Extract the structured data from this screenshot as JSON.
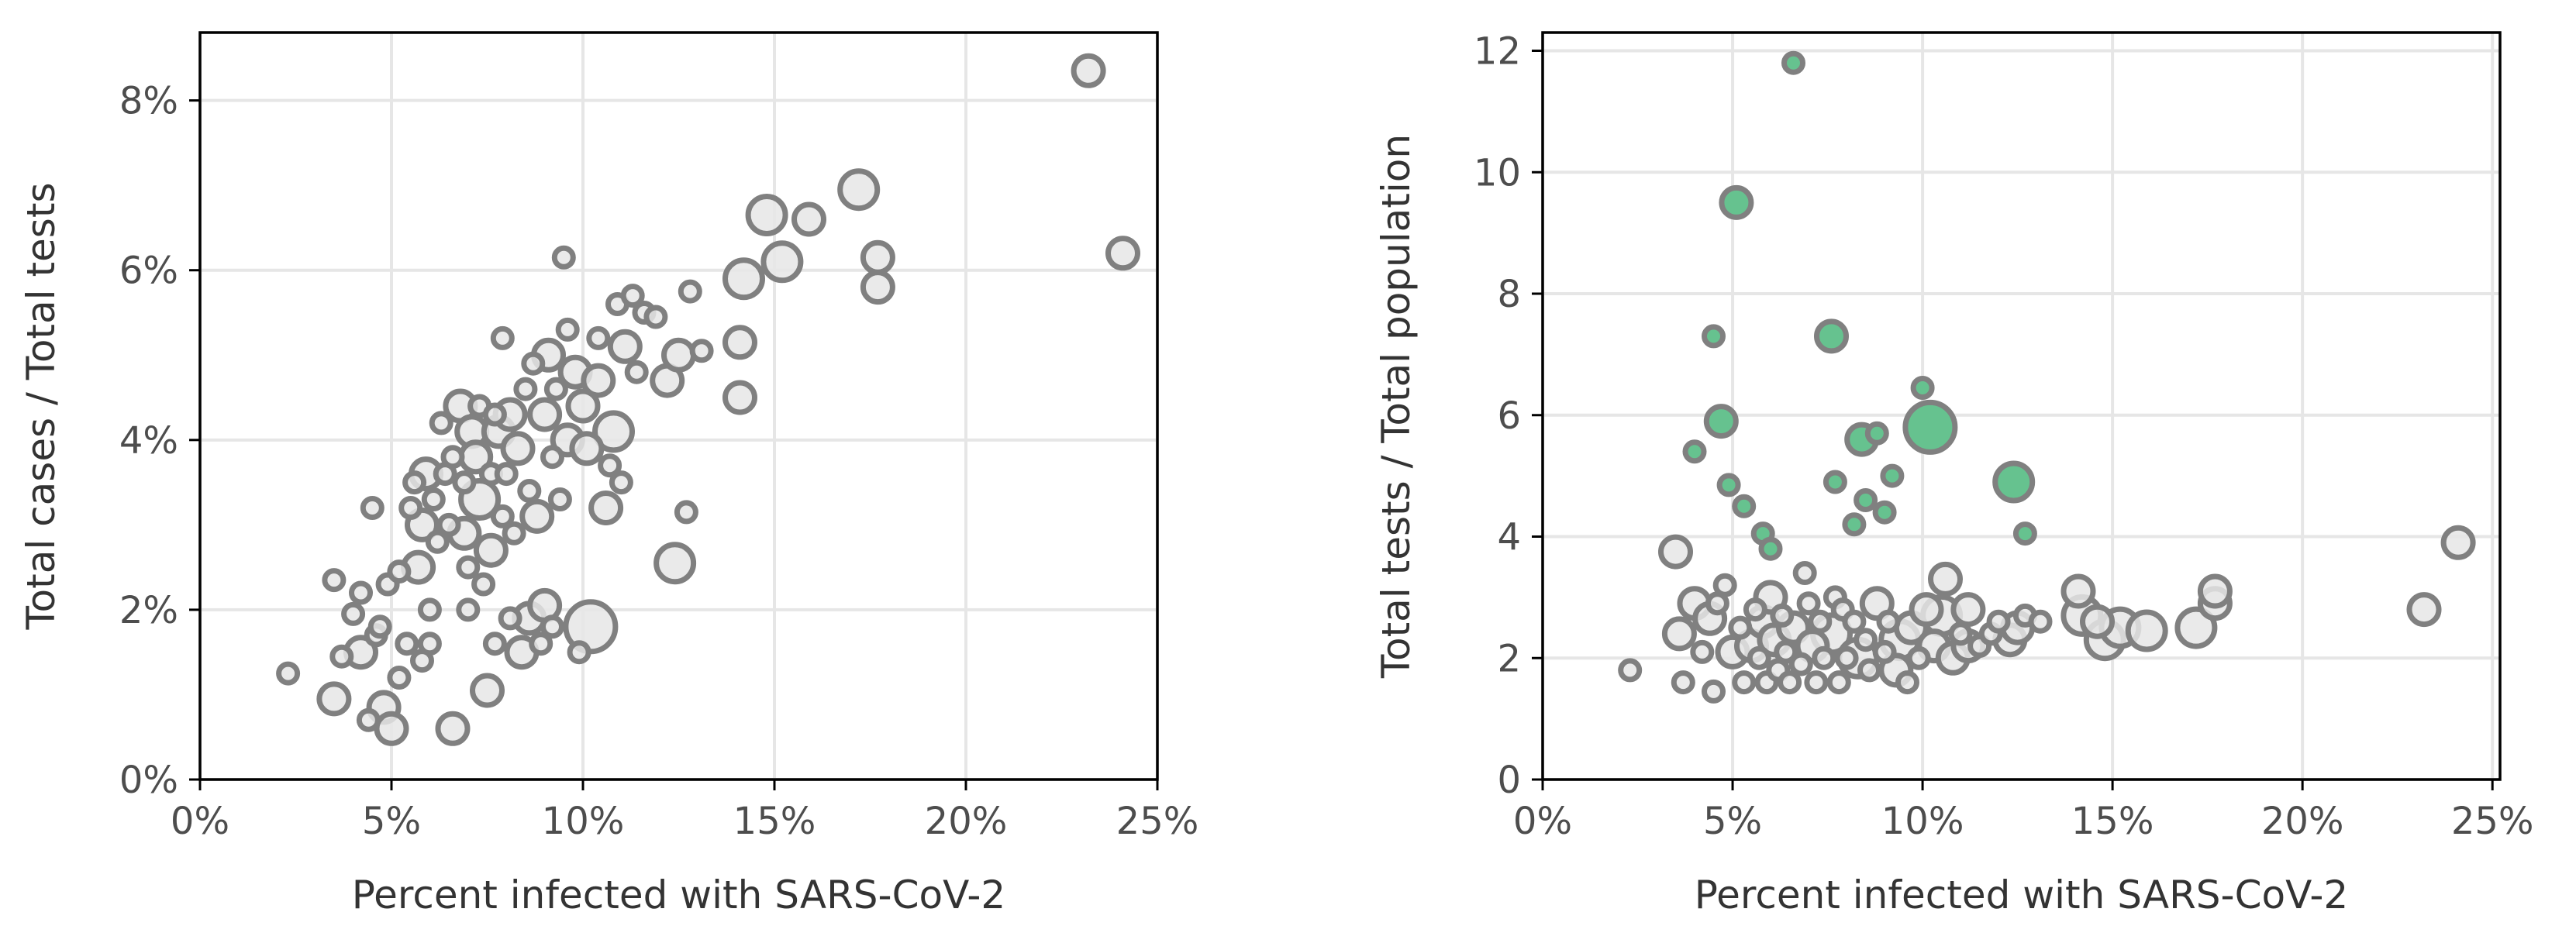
{
  "colors": {
    "bubble_fill": "#e6e6e6",
    "bubble_edge": "#808080",
    "highlight_fill": "#66c28f",
    "grid": "#e6e6e6"
  },
  "chart_data": [
    {
      "type": "scatter",
      "title": "",
      "xlabel": "Percent infected with SARS-CoV-2",
      "ylabel": "Total cases / Total tests",
      "xlim": [
        0,
        25
      ],
      "ylim": [
        0,
        8.8
      ],
      "x_ticks": [
        0,
        5,
        10,
        15,
        20,
        25
      ],
      "x_tick_labels": [
        "0%",
        "5%",
        "10%",
        "15%",
        "20%",
        "25%"
      ],
      "y_ticks": [
        0,
        2,
        4,
        6,
        8
      ],
      "y_tick_labels": [
        "0%",
        "2%",
        "4%",
        "6%",
        "8%"
      ],
      "grid": true,
      "series": [
        {
          "points": [
            [
              2.3,
              1.25,
              1
            ],
            [
              3.5,
              2.35,
              1
            ],
            [
              3.7,
              1.45,
              1
            ],
            [
              3.5,
              0.95,
              2
            ],
            [
              4.0,
              1.95,
              1
            ],
            [
              4.2,
              1.5,
              2
            ],
            [
              4.2,
              2.2,
              1
            ],
            [
              4.4,
              0.7,
              1
            ],
            [
              4.5,
              3.2,
              1
            ],
            [
              4.6,
              1.7,
              1
            ],
            [
              4.7,
              1.8,
              1
            ],
            [
              4.8,
              0.85,
              2
            ],
            [
              4.9,
              2.3,
              1
            ],
            [
              5.0,
              0.6,
              2
            ],
            [
              5.2,
              1.2,
              1
            ],
            [
              5.2,
              2.45,
              1
            ],
            [
              5.4,
              1.6,
              1
            ],
            [
              5.5,
              3.2,
              1
            ],
            [
              5.6,
              3.5,
              1
            ],
            [
              5.7,
              2.5,
              2
            ],
            [
              5.8,
              1.4,
              1
            ],
            [
              5.8,
              3.0,
              2
            ],
            [
              5.9,
              3.6,
              2
            ],
            [
              6.0,
              2.0,
              1
            ],
            [
              6.0,
              1.6,
              1
            ],
            [
              6.1,
              3.3,
              1
            ],
            [
              6.2,
              2.8,
              1
            ],
            [
              6.3,
              4.2,
              1
            ],
            [
              6.4,
              3.6,
              1
            ],
            [
              6.5,
              3.0,
              1
            ],
            [
              6.6,
              0.6,
              2
            ],
            [
              6.6,
              3.8,
              1
            ],
            [
              6.8,
              4.4,
              2
            ],
            [
              6.9,
              3.5,
              1
            ],
            [
              6.9,
              2.9,
              2
            ],
            [
              7.0,
              2.5,
              1
            ],
            [
              7.0,
              2.0,
              1
            ],
            [
              7.1,
              4.1,
              2
            ],
            [
              7.2,
              3.8,
              2
            ],
            [
              7.3,
              3.3,
              3
            ],
            [
              7.3,
              4.4,
              1
            ],
            [
              7.4,
              2.3,
              1
            ],
            [
              7.5,
              1.05,
              2
            ],
            [
              7.6,
              2.7,
              2
            ],
            [
              7.6,
              3.6,
              1
            ],
            [
              7.7,
              1.6,
              1
            ],
            [
              7.7,
              4.3,
              1
            ],
            [
              7.8,
              4.1,
              2
            ],
            [
              7.9,
              3.1,
              1
            ],
            [
              7.9,
              5.2,
              1
            ],
            [
              8.0,
              3.6,
              1
            ],
            [
              8.1,
              4.3,
              2
            ],
            [
              8.1,
              1.9,
              1
            ],
            [
              8.2,
              2.9,
              1
            ],
            [
              8.3,
              3.9,
              2
            ],
            [
              8.4,
              1.5,
              2
            ],
            [
              8.5,
              4.6,
              1
            ],
            [
              8.6,
              3.4,
              1
            ],
            [
              8.6,
              1.9,
              2
            ],
            [
              8.7,
              4.9,
              1
            ],
            [
              8.8,
              3.1,
              2
            ],
            [
              8.9,
              1.6,
              1
            ],
            [
              9.0,
              4.3,
              2
            ],
            [
              9.0,
              2.05,
              2
            ],
            [
              9.1,
              5.0,
              2
            ],
            [
              9.2,
              3.8,
              1
            ],
            [
              9.2,
              1.8,
              1
            ],
            [
              9.3,
              4.6,
              1
            ],
            [
              9.4,
              3.3,
              1
            ],
            [
              9.5,
              6.15,
              1
            ],
            [
              9.6,
              4.0,
              2
            ],
            [
              9.6,
              5.3,
              1
            ],
            [
              9.8,
              4.8,
              2
            ],
            [
              9.9,
              1.5,
              1
            ],
            [
              10.0,
              4.4,
              2
            ],
            [
              10.1,
              3.9,
              2
            ],
            [
              10.2,
              1.8,
              4
            ],
            [
              10.4,
              5.2,
              1
            ],
            [
              10.4,
              4.7,
              2
            ],
            [
              10.6,
              3.2,
              2
            ],
            [
              10.7,
              3.7,
              1
            ],
            [
              10.8,
              4.1,
              3
            ],
            [
              10.9,
              5.6,
              1
            ],
            [
              11.0,
              3.5,
              1
            ],
            [
              11.1,
              5.1,
              2
            ],
            [
              11.3,
              5.7,
              1
            ],
            [
              11.4,
              4.8,
              1
            ],
            [
              11.6,
              5.5,
              1
            ],
            [
              11.9,
              5.45,
              1
            ],
            [
              12.2,
              4.7,
              2
            ],
            [
              12.4,
              2.55,
              3
            ],
            [
              12.5,
              5.0,
              2
            ],
            [
              12.7,
              3.15,
              1
            ],
            [
              12.8,
              5.75,
              1
            ],
            [
              13.1,
              5.05,
              1
            ],
            [
              14.1,
              5.15,
              2
            ],
            [
              14.1,
              4.5,
              2
            ],
            [
              14.2,
              5.9,
              3
            ],
            [
              14.8,
              6.65,
              3
            ],
            [
              15.2,
              6.1,
              3
            ],
            [
              15.9,
              6.6,
              2
            ],
            [
              17.2,
              6.95,
              3
            ],
            [
              17.7,
              6.15,
              2
            ],
            [
              17.7,
              5.8,
              2
            ],
            [
              23.2,
              8.35,
              2
            ],
            [
              24.1,
              6.2,
              2
            ]
          ]
        }
      ]
    },
    {
      "type": "scatter",
      "title": "",
      "xlabel": "Percent infected with SARS-CoV-2",
      "ylabel": "Total tests / Total population",
      "xlim": [
        0,
        25.2
      ],
      "ylim": [
        0,
        12.3
      ],
      "x_ticks": [
        0,
        5,
        10,
        15,
        20,
        25
      ],
      "x_tick_labels": [
        "0%",
        "5%",
        "10%",
        "15%",
        "20%",
        "25%"
      ],
      "y_ticks": [
        0,
        2,
        4,
        6,
        8,
        10,
        12
      ],
      "y_tick_labels": [
        "0",
        "2",
        "4",
        "6",
        "8",
        "10",
        "12"
      ],
      "grid": true,
      "series": [
        {
          "points": [
            [
              2.3,
              1.8,
              1
            ],
            [
              3.5,
              3.75,
              2
            ],
            [
              3.6,
              2.4,
              2
            ],
            [
              3.7,
              1.6,
              1
            ],
            [
              4.0,
              2.9,
              2
            ],
            [
              4.2,
              2.1,
              1
            ],
            [
              4.4,
              2.65,
              2
            ],
            [
              4.5,
              1.45,
              1
            ],
            [
              4.6,
              2.9,
              1
            ],
            [
              4.8,
              3.2,
              1
            ],
            [
              5.0,
              2.1,
              2
            ],
            [
              5.2,
              2.5,
              1
            ],
            [
              5.3,
              1.6,
              1
            ],
            [
              5.5,
              2.2,
              2
            ],
            [
              5.6,
              2.8,
              1
            ],
            [
              5.7,
              2.0,
              1
            ],
            [
              5.8,
              2.6,
              2
            ],
            [
              5.9,
              1.6,
              1
            ],
            [
              6.0,
              3.0,
              2
            ],
            [
              6.1,
              2.3,
              2
            ],
            [
              6.2,
              1.8,
              1
            ],
            [
              6.3,
              2.7,
              1
            ],
            [
              6.4,
              2.1,
              1
            ],
            [
              6.5,
              1.6,
              1
            ],
            [
              6.6,
              2.5,
              2
            ],
            [
              6.8,
              1.9,
              1
            ],
            [
              6.9,
              3.4,
              1
            ],
            [
              7.0,
              2.9,
              1
            ],
            [
              7.1,
              2.2,
              2
            ],
            [
              7.2,
              1.6,
              1
            ],
            [
              7.3,
              2.6,
              1
            ],
            [
              7.4,
              2.0,
              1
            ],
            [
              7.6,
              2.4,
              3
            ],
            [
              7.7,
              3.0,
              1
            ],
            [
              7.8,
              1.6,
              1
            ],
            [
              7.9,
              2.8,
              1
            ],
            [
              8.0,
              2.0,
              1
            ],
            [
              8.2,
              2.6,
              1
            ],
            [
              8.3,
              2.0,
              3
            ],
            [
              8.5,
              2.3,
              1
            ],
            [
              8.6,
              1.8,
              1
            ],
            [
              8.8,
              2.9,
              2
            ],
            [
              9.0,
              2.1,
              1
            ],
            [
              9.1,
              2.6,
              1
            ],
            [
              9.3,
              1.8,
              2
            ],
            [
              9.4,
              2.3,
              3
            ],
            [
              9.6,
              1.6,
              1
            ],
            [
              9.7,
              2.5,
              2
            ],
            [
              9.9,
              2.0,
              1
            ],
            [
              10.1,
              2.8,
              2
            ],
            [
              10.3,
              2.2,
              2
            ],
            [
              10.5,
              2.7,
              3
            ],
            [
              10.6,
              3.3,
              2
            ],
            [
              10.8,
              2.0,
              2
            ],
            [
              11.0,
              2.4,
              1
            ],
            [
              11.2,
              2.8,
              2
            ],
            [
              11.2,
              2.2,
              2
            ],
            [
              11.5,
              2.2,
              1
            ],
            [
              11.8,
              2.4,
              1
            ],
            [
              12.0,
              2.6,
              1
            ],
            [
              12.3,
              2.3,
              2
            ],
            [
              12.5,
              2.5,
              2
            ],
            [
              12.7,
              2.7,
              1
            ],
            [
              13.1,
              2.6,
              1
            ],
            [
              14.1,
              3.1,
              2
            ],
            [
              14.2,
              2.7,
              3
            ],
            [
              14.6,
              2.6,
              2
            ],
            [
              14.8,
              2.3,
              3
            ],
            [
              15.2,
              2.5,
              3
            ],
            [
              15.9,
              2.45,
              3
            ],
            [
              17.2,
              2.5,
              3
            ],
            [
              17.7,
              2.9,
              2
            ],
            [
              17.7,
              3.1,
              2
            ],
            [
              23.2,
              2.8,
              2
            ],
            [
              24.1,
              3.9,
              2
            ]
          ]
        },
        {
          "points": [
            [
              4.0,
              5.4,
              1
            ],
            [
              4.5,
              7.3,
              1
            ],
            [
              4.7,
              5.9,
              2
            ],
            [
              4.9,
              4.85,
              1
            ],
            [
              5.1,
              9.5,
              2
            ],
            [
              5.3,
              4.5,
              1
            ],
            [
              5.8,
              4.05,
              1
            ],
            [
              6.0,
              3.8,
              1
            ],
            [
              6.6,
              11.8,
              1
            ],
            [
              7.6,
              7.3,
              2
            ],
            [
              7.7,
              4.9,
              1
            ],
            [
              8.2,
              4.2,
              1
            ],
            [
              8.4,
              5.6,
              2
            ],
            [
              8.5,
              4.6,
              1
            ],
            [
              8.8,
              5.7,
              1
            ],
            [
              9.0,
              4.4,
              1
            ],
            [
              9.2,
              5.0,
              1
            ],
            [
              10.0,
              6.45,
              1
            ],
            [
              10.2,
              5.8,
              4
            ],
            [
              12.4,
              4.9,
              3
            ],
            [
              12.7,
              4.05,
              1
            ]
          ]
        }
      ]
    }
  ]
}
